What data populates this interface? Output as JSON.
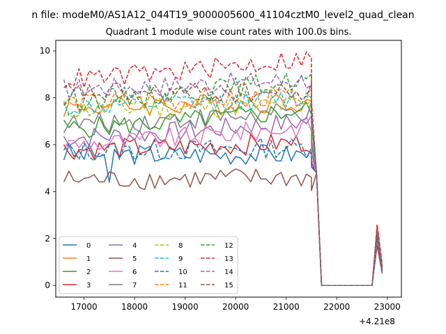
{
  "figure": {
    "suptitle": "n file: modeM0/AS1A12_044T19_9000005600_41104cztM0_level2_quad_clean",
    "x_offset_label": "+4.21e8"
  },
  "chart_data": {
    "type": "line",
    "title": "Quadrant 1 module wise count rates with 100.0s bins.",
    "xlabel": "",
    "ylabel": "",
    "x_offset": 421000000,
    "xlim": [
      16440,
      23280
    ],
    "ylim": [
      -0.5,
      10.45
    ],
    "xticks": [
      17000,
      18000,
      19000,
      20000,
      21000,
      22000,
      23000
    ],
    "yticks": [
      0,
      2,
      4,
      6,
      8,
      10
    ],
    "grid": false,
    "legend_location": "lower-left",
    "legend_columns": 4,
    "x_layout": {
      "x_start": 16600,
      "step": 100,
      "active_points": 50,
      "gap_x_start": 21700,
      "gap_x_end": 22700,
      "tail_x": [
        22700,
        22800,
        22900
      ]
    },
    "series": [
      {
        "name": "0",
        "color": "#1f77b4",
        "linestyle": "solid",
        "level": 5.6,
        "drift": 0.0,
        "tail": [
          0.0,
          2.0,
          0.6
        ]
      },
      {
        "name": "1",
        "color": "#ff7f0e",
        "linestyle": "solid",
        "level": 7.6,
        "drift": 0.25,
        "tail": [
          0.0,
          2.2,
          0.7
        ]
      },
      {
        "name": "2",
        "color": "#2ca02c",
        "linestyle": "solid",
        "level": 6.7,
        "drift": 0.8,
        "tail": [
          0.0,
          2.3,
          0.7
        ]
      },
      {
        "name": "3",
        "color": "#d62728",
        "linestyle": "solid",
        "level": 5.8,
        "drift": 0.3,
        "tail": [
          0.0,
          2.5,
          0.8
        ]
      },
      {
        "name": "4",
        "color": "#9467bd",
        "linestyle": "solid",
        "level": 6.3,
        "drift": 0.7,
        "tail": [
          0.0,
          2.1,
          0.6
        ]
      },
      {
        "name": "5",
        "color": "#8c564b",
        "linestyle": "solid",
        "level": 4.5,
        "drift": 0.1,
        "tail": [
          0.0,
          1.7,
          0.5
        ]
      },
      {
        "name": "6",
        "color": "#e377c2",
        "linestyle": "solid",
        "level": 6.0,
        "drift": 0.8,
        "tail": [
          0.0,
          2.0,
          0.6
        ]
      },
      {
        "name": "7",
        "color": "#7f7f7f",
        "linestyle": "solid",
        "level": 6.9,
        "drift": 0.5,
        "tail": [
          0.0,
          2.1,
          0.6
        ]
      },
      {
        "name": "8",
        "color": "#bcbd22",
        "linestyle": "dashed",
        "level": 7.5,
        "drift": 0.2,
        "tail": [
          0.0,
          2.2,
          0.7
        ]
      },
      {
        "name": "9",
        "color": "#17becf",
        "linestyle": "dashed",
        "level": 7.6,
        "drift": 0.4,
        "tail": [
          0.0,
          2.3,
          0.7
        ]
      },
      {
        "name": "10",
        "color": "#1f77b4",
        "linestyle": "dashed",
        "level": 5.7,
        "drift": 0.2,
        "tail": [
          0.0,
          2.0,
          0.6
        ]
      },
      {
        "name": "11",
        "color": "#ff7f0e",
        "linestyle": "dashed",
        "level": 7.8,
        "drift": 0.3,
        "tail": [
          0.0,
          2.4,
          0.8
        ]
      },
      {
        "name": "12",
        "color": "#2ca02c",
        "linestyle": "dashed",
        "level": 7.9,
        "drift": 0.9,
        "tail": [
          0.0,
          2.4,
          0.8
        ]
      },
      {
        "name": "13",
        "color": "#d62728",
        "linestyle": "dashed",
        "level": 8.8,
        "drift": 0.9,
        "tail": [
          0.0,
          2.6,
          0.9
        ]
      },
      {
        "name": "14",
        "color": "#9467bd",
        "linestyle": "dashed",
        "level": 8.4,
        "drift": 0.4,
        "tail": [
          0.0,
          2.3,
          0.7
        ]
      },
      {
        "name": "15",
        "color": "#8c564b",
        "linestyle": "dashed",
        "level": 8.2,
        "drift": 0.0,
        "tail": [
          0.0,
          2.2,
          0.7
        ]
      }
    ]
  }
}
